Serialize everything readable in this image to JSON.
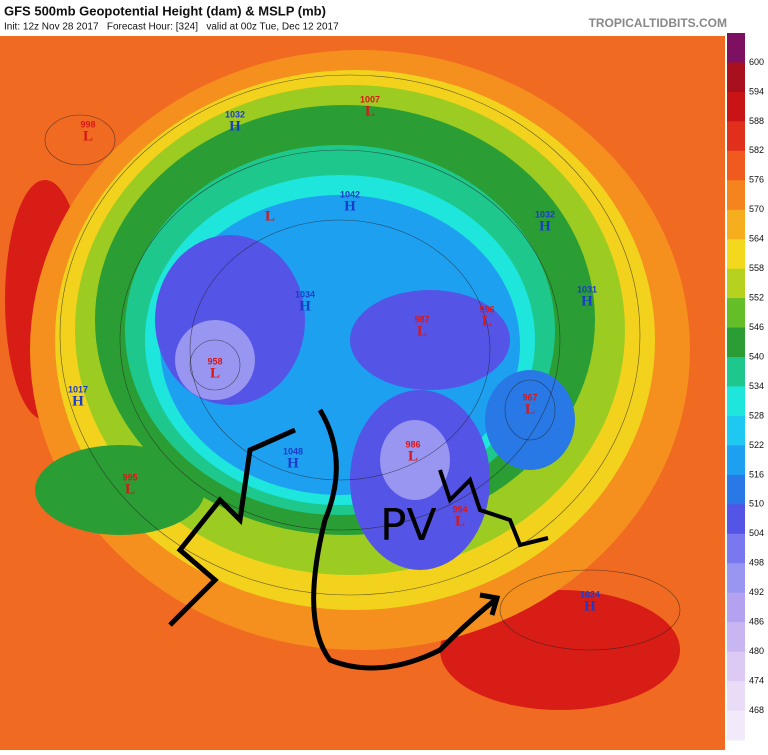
{
  "header": {
    "title": "GFS 500mb Geopotential Height (dam) & MSLP (mb)",
    "subtitle": "Init: 12z Nov 28 2017   Forecast Hour: [324]   valid at 00z Tue, Dec 12 2017",
    "credit": "TROPICALTIDBITS.COM"
  },
  "colorbar": {
    "labels": [
      600,
      594,
      588,
      582,
      576,
      570,
      564,
      558,
      552,
      546,
      540,
      534,
      528,
      522,
      516,
      510,
      504,
      498,
      492,
      486,
      480,
      474,
      468
    ],
    "colors": [
      "#7d1060",
      "#a8101e",
      "#c81414",
      "#e0301c",
      "#f05a1e",
      "#f5841e",
      "#f7ae1e",
      "#f3d81e",
      "#b6d21e",
      "#64be28",
      "#2a9e34",
      "#1ec88c",
      "#1ee6dc",
      "#1ec8f0",
      "#1ea0f0",
      "#2878e6",
      "#5454e6",
      "#7a78ee",
      "#9896f0",
      "#b4a2f0",
      "#c8b6f2",
      "#dccaf5",
      "#e8dcf7",
      "#f2eafa"
    ]
  },
  "centers": [
    {
      "letter": "L",
      "value": 998
    },
    {
      "letter": "H",
      "value": 1032
    },
    {
      "letter": "L",
      "value": 1007
    },
    {
      "letter": "L"
    },
    {
      "letter": "H",
      "value": 1042
    },
    {
      "letter": "H",
      "value": 1032
    },
    {
      "letter": "L",
      "value": 987
    },
    {
      "letter": "L",
      "value": 996
    },
    {
      "letter": "H",
      "value": 1034
    },
    {
      "letter": "H",
      "value": 1031
    },
    {
      "letter": "L",
      "value": 958
    },
    {
      "letter": "H",
      "value": 1017
    },
    {
      "letter": "L",
      "value": 967
    },
    {
      "letter": "L",
      "value": 986
    },
    {
      "letter": "H",
      "value": 1048
    },
    {
      "letter": "L",
      "value": 995
    },
    {
      "letter": "L",
      "value": 994
    },
    {
      "letter": "H",
      "value": 1024
    }
  ],
  "annotation": "PV"
}
